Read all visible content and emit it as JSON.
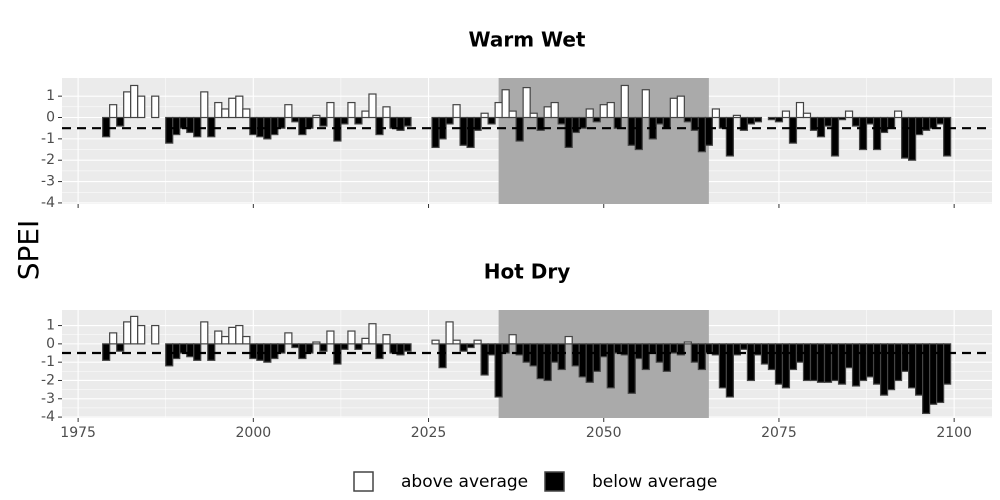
{
  "y_label": "SPEI",
  "legend": [
    {
      "name": "above average",
      "color": "#ffffff"
    },
    {
      "name": "below average",
      "color": "#000000"
    }
  ],
  "chart_data": [
    {
      "type": "bar",
      "title": "Warm Wet",
      "x": [
        1979,
        1980,
        1981,
        1982,
        1983,
        1984,
        1985,
        1986,
        1987,
        1988,
        1989,
        1990,
        1991,
        1992,
        1993,
        1994,
        1995,
        1996,
        1997,
        1998,
        1999,
        2000,
        2001,
        2002,
        2003,
        2004,
        2005,
        2006,
        2007,
        2008,
        2009,
        2010,
        2011,
        2012,
        2013,
        2014,
        2015,
        2016,
        2017,
        2018,
        2019,
        2020,
        2021,
        2022,
        2026,
        2027,
        2028,
        2029,
        2030,
        2031,
        2032,
        2033,
        2034,
        2035,
        2036,
        2037,
        2038,
        2039,
        2040,
        2041,
        2042,
        2043,
        2044,
        2045,
        2046,
        2047,
        2048,
        2049,
        2050,
        2051,
        2052,
        2053,
        2054,
        2055,
        2056,
        2057,
        2058,
        2059,
        2060,
        2061,
        2062,
        2063,
        2064,
        2065,
        2066,
        2067,
        2068,
        2069,
        2070,
        2071,
        2072,
        2073,
        2074,
        2075,
        2076,
        2077,
        2078,
        2079,
        2080,
        2081,
        2082,
        2083,
        2084,
        2085,
        2086,
        2087,
        2088,
        2089,
        2090,
        2091,
        2092,
        2093,
        2094,
        2095,
        2096,
        2097,
        2098,
        2099
      ],
      "values": [
        -0.9,
        0.6,
        -0.4,
        1.2,
        1.5,
        1.0,
        0,
        1.0,
        0,
        -1.2,
        -0.8,
        -0.5,
        -0.7,
        -0.9,
        1.2,
        -0.9,
        0.7,
        0.4,
        0.9,
        1.0,
        0.4,
        -0.8,
        -0.9,
        -1.0,
        -0.8,
        -0.5,
        0.6,
        -0.2,
        -0.8,
        -0.5,
        0.1,
        -0.4,
        0.7,
        -1.1,
        -0.3,
        0.7,
        -0.3,
        0.3,
        1.1,
        -0.8,
        0.5,
        -0.5,
        -0.6,
        -0.4,
        -1.4,
        -1.0,
        -0.3,
        0.6,
        -1.3,
        -1.4,
        -0.6,
        0.2,
        -0.3,
        0.7,
        1.3,
        0.3,
        -1.1,
        1.4,
        0.2,
        -0.6,
        0.5,
        0.7,
        -0.3,
        -1.4,
        -0.7,
        -0.5,
        0.4,
        -0.2,
        0.6,
        0.7,
        -0.5,
        1.5,
        -1.3,
        -1.5,
        1.3,
        -1.0,
        -0.3,
        -0.5,
        0.9,
        1.0,
        -0.2,
        -0.6,
        -1.6,
        -1.3,
        0.4,
        -0.5,
        -1.8,
        0.1,
        -0.6,
        -0.3,
        -0.2,
        0.0,
        -0.1,
        -0.2,
        0.3,
        -1.2,
        0.7,
        0.2,
        -0.6,
        -0.9,
        -0.4,
        -1.8,
        -0.1,
        0.3,
        -0.4,
        -1.5,
        -0.3,
        -1.5,
        -0.7,
        -0.5,
        0.3,
        -1.9,
        -2.0,
        -0.8,
        -0.6,
        -0.5,
        -0.3,
        -1.8
      ],
      "xlim": [
        1972.7,
        2105.4
      ],
      "ylim": [
        -4.05,
        1.85
      ],
      "xticks": [
        1975,
        2000,
        2025,
        2050,
        2075,
        2100
      ],
      "xtick_labels": false,
      "yticks": [
        -4,
        -3,
        -2,
        -1,
        0,
        1
      ],
      "grid": true,
      "hline": -0.5,
      "highlight": [
        2035,
        2065
      ]
    },
    {
      "type": "bar",
      "title": "Hot Dry",
      "x": [
        1979,
        1980,
        1981,
        1982,
        1983,
        1984,
        1985,
        1986,
        1987,
        1988,
        1989,
        1990,
        1991,
        1992,
        1993,
        1994,
        1995,
        1996,
        1997,
        1998,
        1999,
        2000,
        2001,
        2002,
        2003,
        2004,
        2005,
        2006,
        2007,
        2008,
        2009,
        2010,
        2011,
        2012,
        2013,
        2014,
        2015,
        2016,
        2017,
        2018,
        2019,
        2020,
        2021,
        2022,
        2026,
        2027,
        2028,
        2029,
        2030,
        2031,
        2032,
        2033,
        2034,
        2035,
        2036,
        2037,
        2038,
        2039,
        2040,
        2041,
        2042,
        2043,
        2044,
        2045,
        2046,
        2047,
        2048,
        2049,
        2050,
        2051,
        2052,
        2053,
        2054,
        2055,
        2056,
        2057,
        2058,
        2059,
        2060,
        2061,
        2062,
        2063,
        2064,
        2065,
        2066,
        2067,
        2068,
        2069,
        2070,
        2071,
        2072,
        2073,
        2074,
        2075,
        2076,
        2077,
        2078,
        2079,
        2080,
        2081,
        2082,
        2083,
        2084,
        2085,
        2086,
        2087,
        2088,
        2089,
        2090,
        2091,
        2092,
        2093,
        2094,
        2095,
        2096,
        2097,
        2098,
        2099
      ],
      "values": [
        -0.9,
        0.6,
        -0.4,
        1.2,
        1.5,
        1.0,
        0,
        1.0,
        0,
        -1.2,
        -0.8,
        -0.5,
        -0.7,
        -0.9,
        1.2,
        -0.9,
        0.7,
        0.4,
        0.9,
        1.0,
        0.4,
        -0.8,
        -0.9,
        -1.0,
        -0.8,
        -0.5,
        0.6,
        -0.2,
        -0.8,
        -0.5,
        0.1,
        -0.4,
        0.7,
        -1.1,
        -0.3,
        0.7,
        -0.3,
        0.3,
        1.1,
        -0.8,
        0.5,
        -0.5,
        -0.6,
        -0.4,
        0.2,
        -1.3,
        1.2,
        0.2,
        -0.4,
        -0.2,
        0.2,
        -1.7,
        -0.6,
        -2.9,
        -0.5,
        0.5,
        -0.6,
        -1.0,
        -1.2,
        -1.9,
        -2.0,
        -1.0,
        -1.4,
        0.4,
        -1.2,
        -1.8,
        -2.1,
        -1.5,
        -0.7,
        -2.4,
        -0.5,
        -0.6,
        -2.7,
        -0.8,
        -1.4,
        -0.5,
        -1.0,
        -1.5,
        -0.5,
        -0.6,
        0.1,
        -1.0,
        -1.4,
        -0.5,
        -0.6,
        -2.4,
        -2.9,
        -0.6,
        -0.3,
        -2.0,
        -0.6,
        -1.1,
        -1.4,
        -2.2,
        -2.4,
        -1.4,
        -1.0,
        -2.0,
        -2.0,
        -2.1,
        -2.1,
        -2.0,
        -2.2,
        -1.3,
        -2.3,
        -2.0,
        -1.8,
        -2.2,
        -2.8,
        -2.5,
        -2.0,
        -1.5,
        -2.4,
        -2.8,
        -3.8,
        -3.3,
        -3.2,
        -2.2
      ],
      "xlim": [
        1972.7,
        2105.4
      ],
      "ylim": [
        -4.05,
        1.85
      ],
      "xticks": [
        1975,
        2000,
        2025,
        2050,
        2075,
        2100
      ],
      "xtick_labels": true,
      "yticks": [
        -4,
        -3,
        -2,
        -1,
        0,
        1
      ],
      "grid": true,
      "hline": -0.5,
      "highlight": [
        2035,
        2065
      ]
    }
  ]
}
